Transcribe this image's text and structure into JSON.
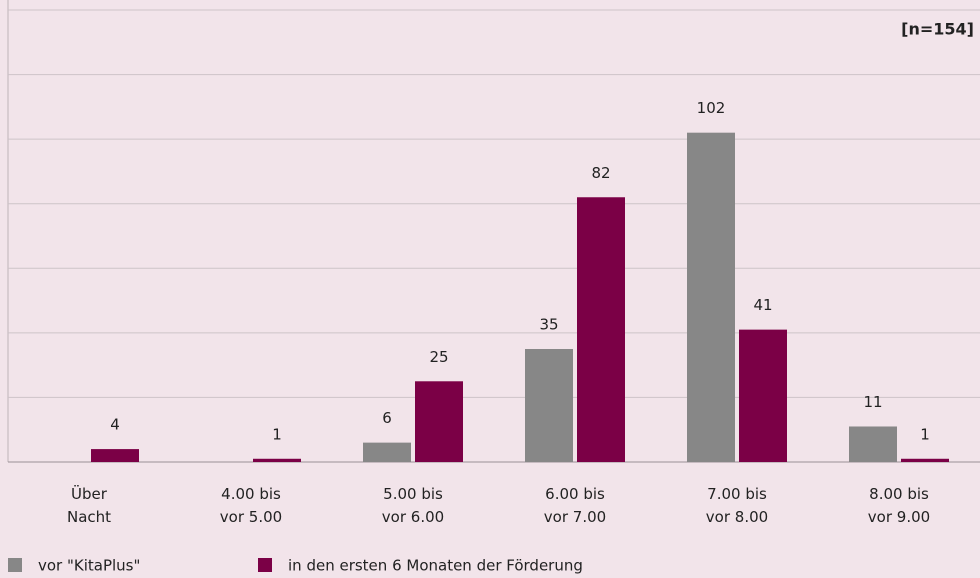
{
  "chart_data": {
    "type": "bar",
    "annotation": "[n=154]",
    "categories": [
      "Über\nNacht",
      "4.00 bis\nvor 5.00",
      "5.00 bis\nvor 6.00",
      "6.00 bis\nvor 7.00",
      "7.00 bis\nvor 8.00",
      "8.00 bis\nvor 9.00"
    ],
    "series": [
      {
        "name": "vor \"KitaPlus\"",
        "color": "#878787",
        "values": [
          null,
          null,
          6,
          35,
          102,
          11
        ]
      },
      {
        "name": "in den ersten 6 Monaten der Förderung",
        "color": "#7b0046",
        "values": [
          4,
          1,
          25,
          82,
          41,
          1
        ]
      }
    ],
    "ylim": [
      0,
      140
    ],
    "yticks": [
      0,
      20,
      40,
      60,
      80,
      100,
      120,
      140
    ],
    "grid": true
  }
}
